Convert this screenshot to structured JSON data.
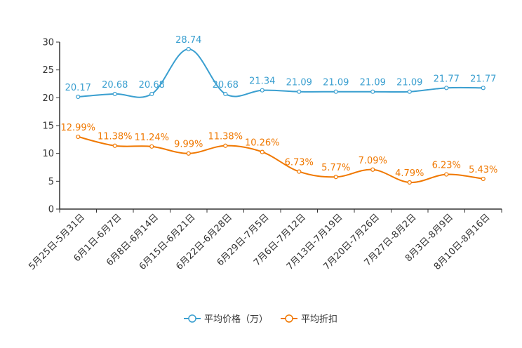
{
  "chart_data": {
    "type": "line",
    "title": "",
    "xlabel": "",
    "ylabel": "",
    "ylim": [
      0,
      30
    ],
    "yticks": [
      0,
      5,
      10,
      15,
      20,
      25,
      30
    ],
    "grid": false,
    "legend_position": "bottom-center",
    "categories": [
      "5月25日-5月31日",
      "6月1日-6月7日",
      "6月8日-6月14日",
      "6月15日-6月21日",
      "6月22日-6月28日",
      "6月29日-7月5日",
      "7月6日-7月12日",
      "7月13日-7月19日",
      "7月20日-7月26日",
      "7月27日-8月2日",
      "8月3日-8月9日",
      "8月10日-8月16日"
    ],
    "series": [
      {
        "name": "平均价格（万）",
        "color": "#3a9fd0",
        "values": [
          20.17,
          20.68,
          20.68,
          28.74,
          20.68,
          21.34,
          21.09,
          21.09,
          21.09,
          21.09,
          21.77,
          21.77
        ],
        "labels": [
          "20.17",
          "20.68",
          "20.68",
          "28.74",
          "20.68",
          "21.34",
          "21.09",
          "21.09",
          "21.09",
          "21.09",
          "21.77",
          "21.77"
        ]
      },
      {
        "name": "平均折扣",
        "color": "#f07800",
        "values": [
          12.99,
          11.38,
          11.24,
          9.99,
          11.38,
          10.26,
          6.73,
          5.77,
          7.09,
          4.79,
          6.23,
          5.43
        ],
        "labels": [
          "12.99%",
          "11.38%",
          "11.24%",
          "9.99%",
          "11.38%",
          "10.26%",
          "6.73%",
          "5.77%",
          "7.09%",
          "4.79%",
          "6.23%",
          "5.43%"
        ]
      }
    ]
  }
}
